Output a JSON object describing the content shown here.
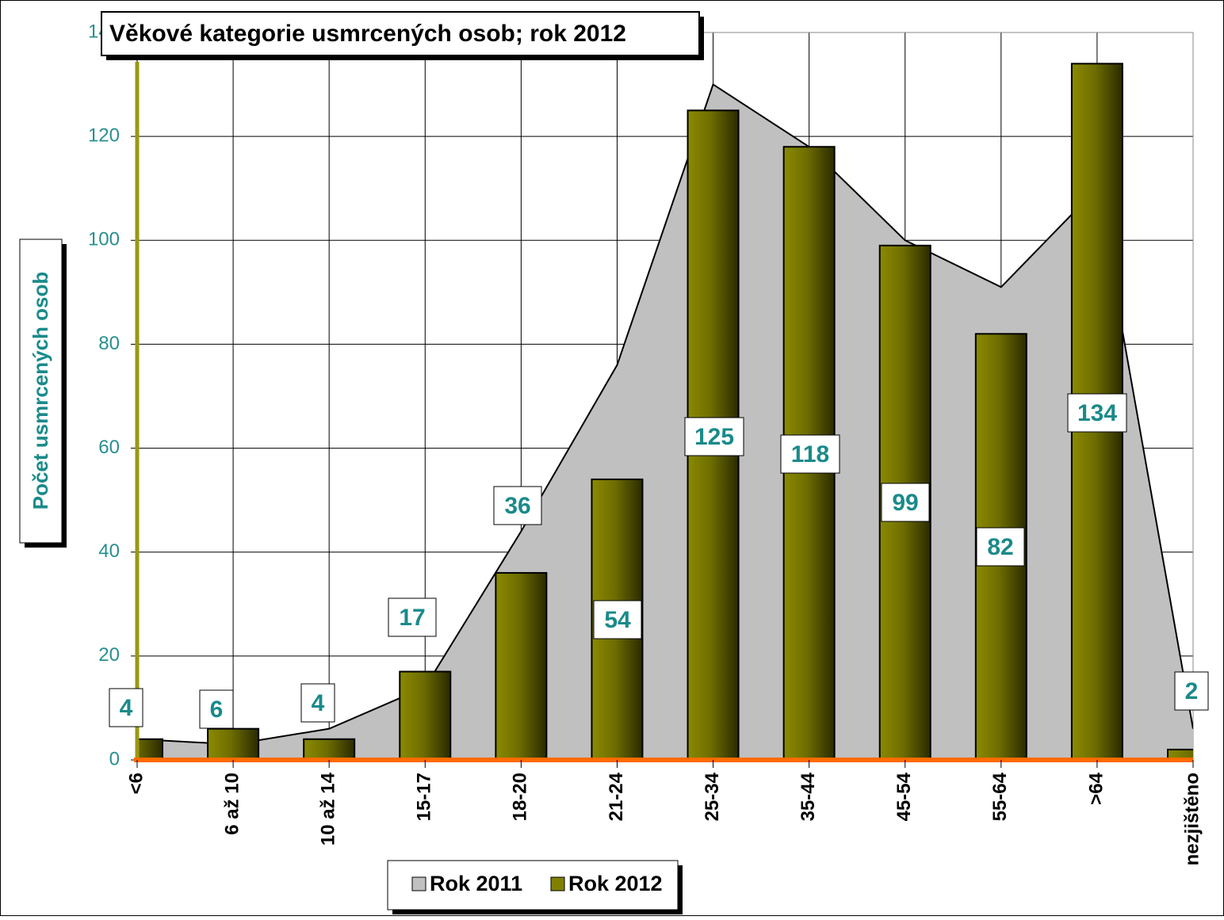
{
  "chart_data": {
    "type": "bar",
    "title": "Věkové kategorie usmrcených osob;  rok  2012",
    "y_label": "Počet usmrcených osob",
    "categories": [
      "<6",
      "6 až 10",
      "10 až 14",
      "15-17",
      "18-20",
      "21-24",
      "25-34",
      "35-44",
      "45-54",
      "55-64",
      ">64",
      "nezjištěno"
    ],
    "series": [
      {
        "name": "Rok 2011",
        "type": "area",
        "color": "#c0c0c0",
        "values": [
          4,
          3,
          6,
          14,
          44,
          76,
          130,
          118,
          100,
          91,
          110,
          6
        ]
      },
      {
        "name": "Rok 2012",
        "type": "bar",
        "color": "#808000",
        "values": [
          4,
          6,
          4,
          17,
          36,
          54,
          125,
          118,
          99,
          82,
          134,
          2
        ]
      }
    ],
    "ylim": [
      0,
      140
    ],
    "yticks": [
      0,
      20,
      40,
      60,
      80,
      100,
      120,
      140
    ],
    "grid": true,
    "legend": "bottom"
  }
}
